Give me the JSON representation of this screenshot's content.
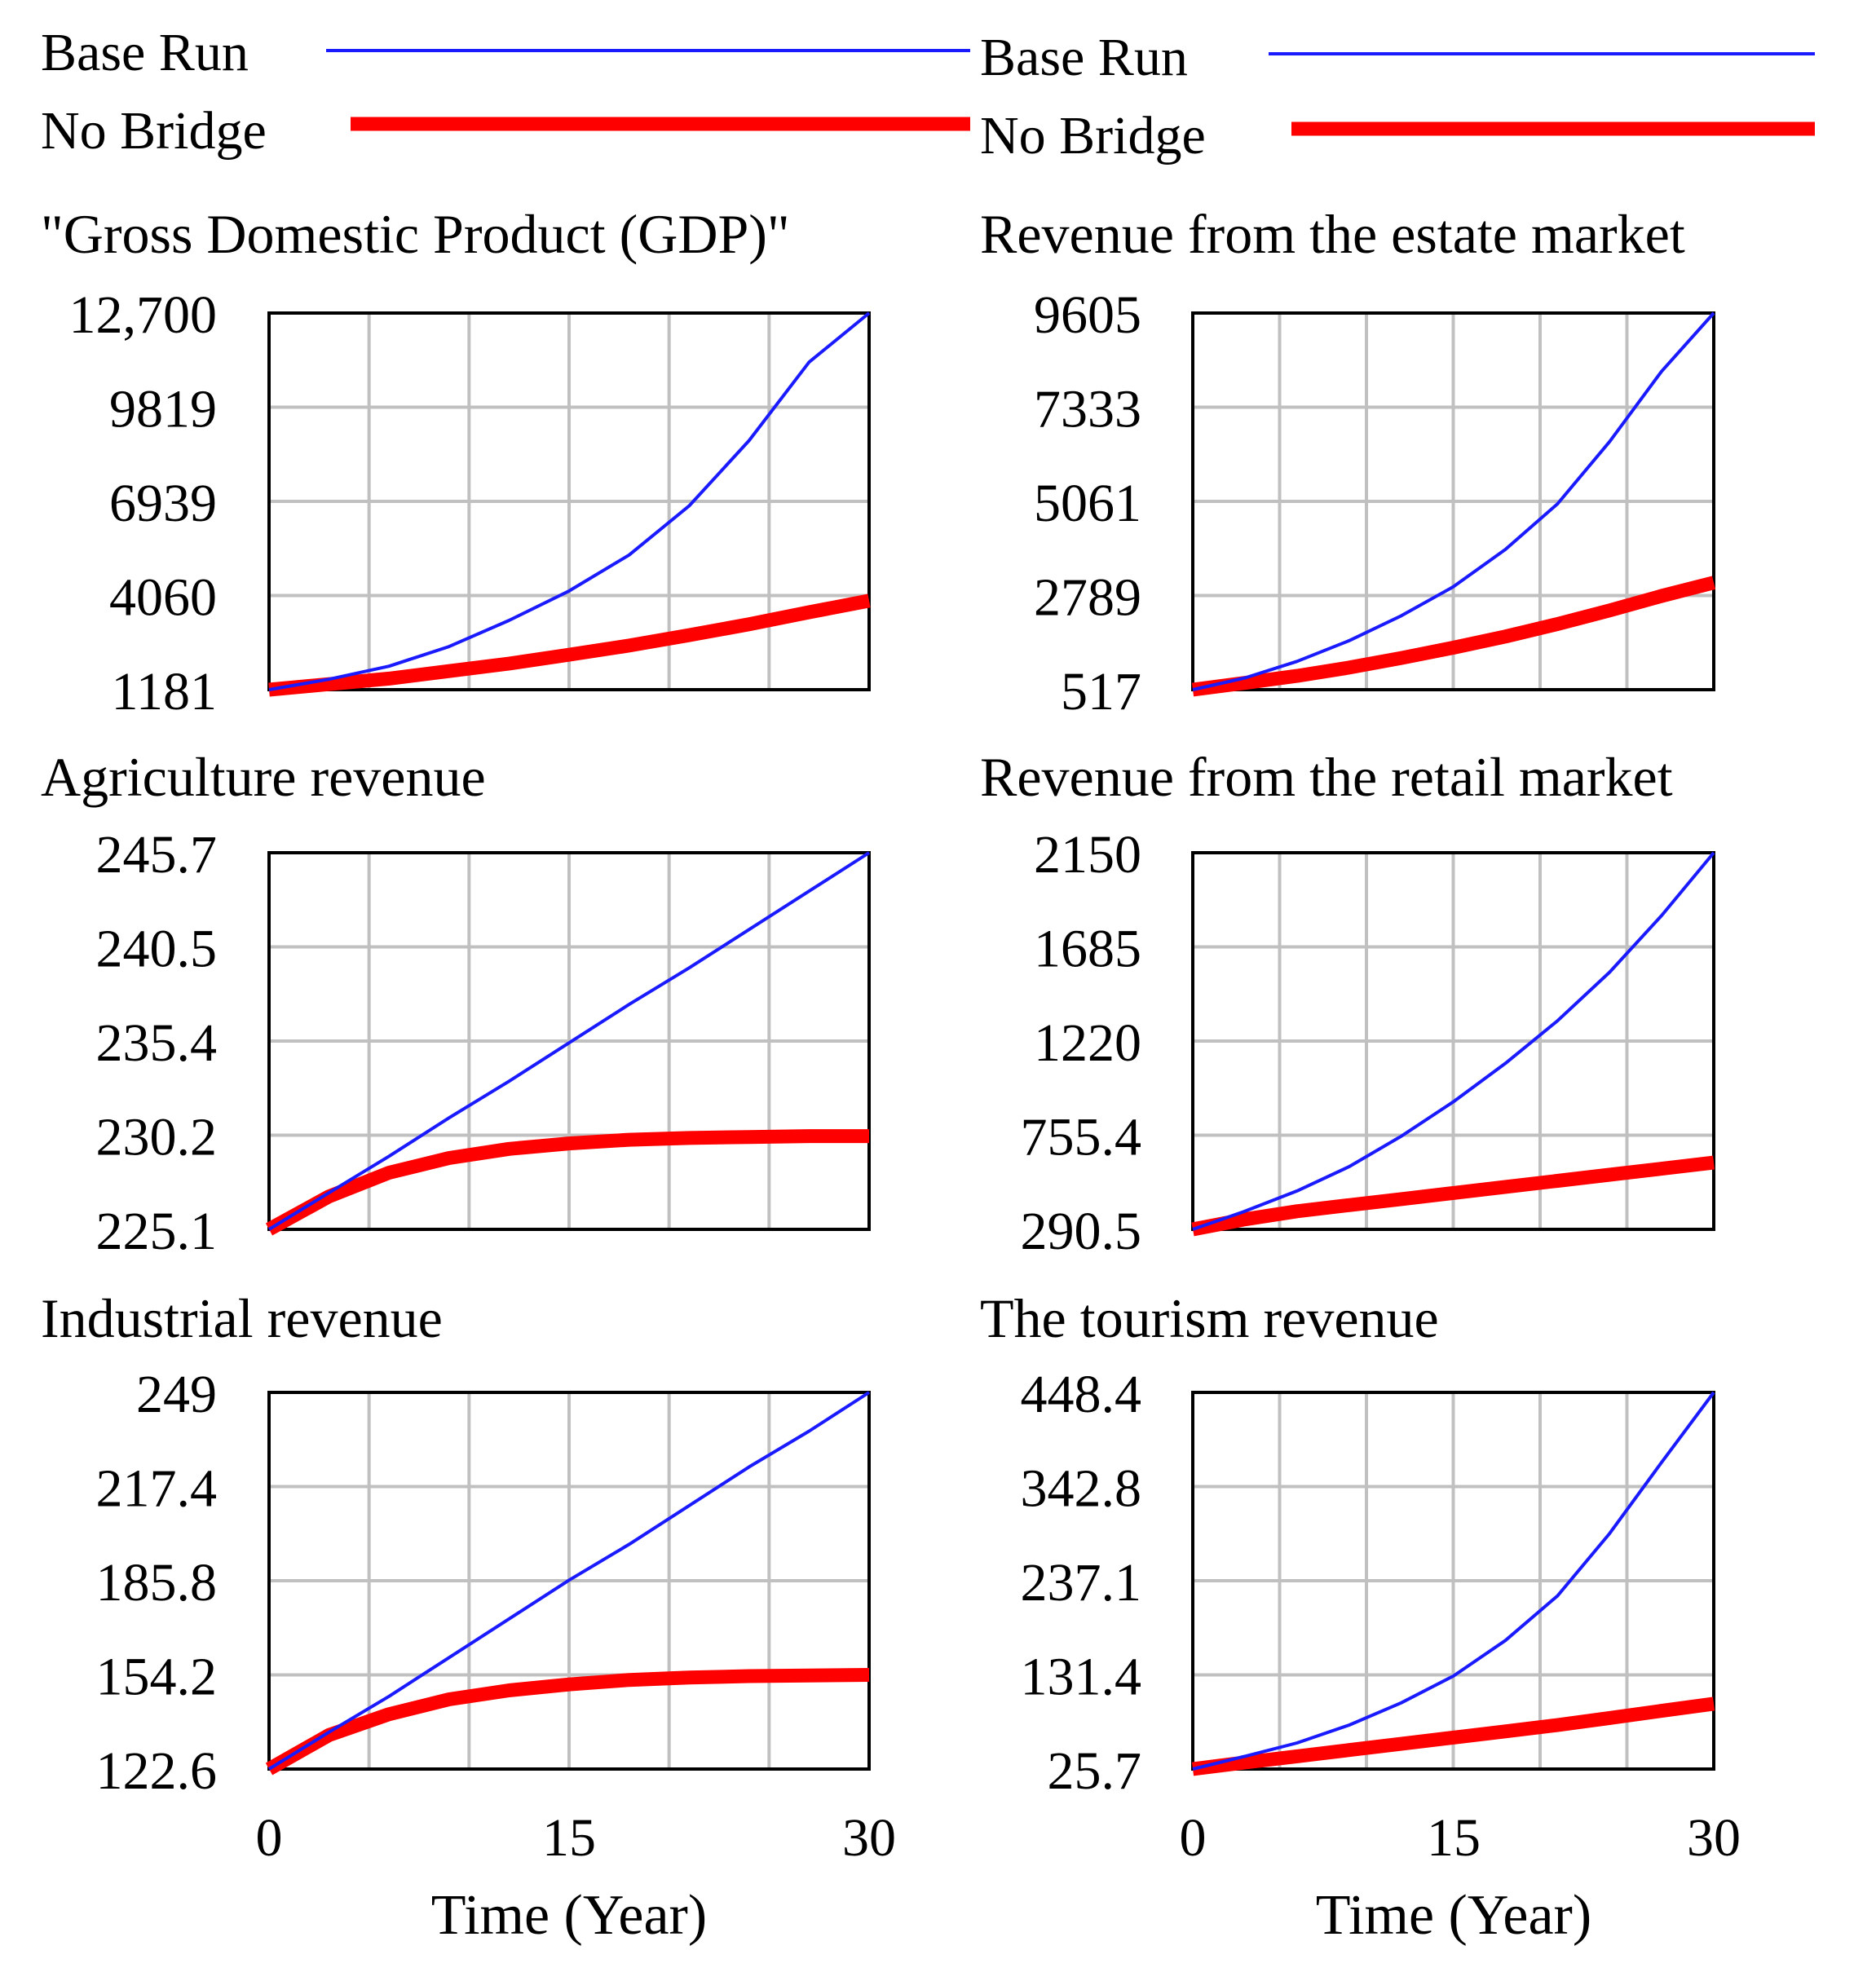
{
  "legend": {
    "left": [
      {
        "label": "Base Run",
        "color": "#1a1aff",
        "width": "thin"
      },
      {
        "label": "No Bridge",
        "color": "#ff0000",
        "width": "thick"
      }
    ],
    "right": [
      {
        "label": "Base Run",
        "color": "#1a1aff",
        "width": "thin"
      },
      {
        "label": "No Bridge",
        "color": "#ff0000",
        "width": "thick"
      }
    ]
  },
  "x_axis": {
    "label": "Time (Year)",
    "ticks": [
      "0",
      "15",
      "30"
    ],
    "range": [
      0,
      30
    ]
  },
  "chart_data": [
    {
      "type": "line",
      "title": "\"Gross Domestic Product (GDP)\"",
      "ytick_labels": [
        "12,700",
        "9819",
        "6939",
        "4060",
        "1181"
      ],
      "ylim": [
        1181,
        12700
      ],
      "x": [
        0,
        3,
        6,
        9,
        12,
        15,
        18,
        21,
        24,
        27,
        30
      ],
      "series": [
        {
          "name": "Base Run",
          "values": [
            1181,
            1500,
            1900,
            2500,
            3300,
            4200,
            5300,
            6800,
            8800,
            11200,
            12700
          ]
        },
        {
          "name": "No Bridge",
          "values": [
            1181,
            1350,
            1520,
            1750,
            1980,
            2250,
            2530,
            2850,
            3180,
            3550,
            3900
          ]
        }
      ]
    },
    {
      "type": "line",
      "title": "Revenue from the estate market",
      "ytick_labels": [
        "9605",
        "7333",
        "5061",
        "2789",
        "517"
      ],
      "ylim": [
        517,
        9605
      ],
      "x": [
        0,
        3,
        6,
        9,
        12,
        15,
        18,
        21,
        24,
        27,
        30
      ],
      "series": [
        {
          "name": "Base Run",
          "values": [
            517,
            800,
            1200,
            1700,
            2300,
            3000,
            3900,
            5000,
            6500,
            8200,
            9605
          ]
        },
        {
          "name": "No Bridge",
          "values": [
            517,
            680,
            850,
            1050,
            1280,
            1530,
            1800,
            2100,
            2430,
            2780,
            3100
          ]
        }
      ]
    },
    {
      "type": "line",
      "title": "Agriculture revenue",
      "ytick_labels": [
        "245.7",
        "240.5",
        "235.4",
        "230.2",
        "225.1"
      ],
      "ylim": [
        225.1,
        245.7
      ],
      "x": [
        0,
        3,
        6,
        9,
        12,
        15,
        18,
        21,
        24,
        27,
        30
      ],
      "series": [
        {
          "name": "Base Run",
          "values": [
            225.1,
            227.1,
            229.1,
            231.2,
            233.2,
            235.3,
            237.4,
            239.4,
            241.5,
            243.6,
            245.7
          ]
        },
        {
          "name": "No Bridge",
          "values": [
            225.1,
            226.9,
            228.2,
            229.0,
            229.5,
            229.8,
            230.0,
            230.1,
            230.15,
            230.2,
            230.2
          ]
        }
      ]
    },
    {
      "type": "line",
      "title": "Revenue from the retail market",
      "ytick_labels": [
        "2150",
        "1685",
        "1220",
        "755.4",
        "290.5"
      ],
      "ylim": [
        290.5,
        2150
      ],
      "x": [
        0,
        3,
        6,
        9,
        12,
        15,
        18,
        21,
        24,
        27,
        30
      ],
      "series": [
        {
          "name": "Base Run",
          "values": [
            290.5,
            380,
            480,
            600,
            750,
            920,
            1110,
            1320,
            1560,
            1840,
            2150
          ]
        },
        {
          "name": "No Bridge",
          "values": [
            290.5,
            340,
            380,
            410,
            440,
            470,
            500,
            530,
            560,
            590,
            620
          ]
        }
      ]
    },
    {
      "type": "line",
      "title": "Industrial revenue",
      "ytick_labels": [
        "249",
        "217.4",
        "185.8",
        "154.2",
        "122.6"
      ],
      "ylim": [
        122.6,
        249
      ],
      "x": [
        0,
        3,
        6,
        9,
        12,
        15,
        18,
        21,
        24,
        27,
        30
      ],
      "series": [
        {
          "name": "Base Run",
          "values": [
            122.6,
            135,
            147,
            160,
            173,
            186,
            198,
            211,
            224,
            236,
            249
          ]
        },
        {
          "name": "No Bridge",
          "values": [
            122.6,
            134,
            141,
            146,
            149,
            151,
            152.5,
            153.3,
            153.8,
            154.0,
            154.2
          ]
        }
      ]
    },
    {
      "type": "line",
      "title": "The tourism revenue",
      "ytick_labels": [
        "448.4",
        "342.8",
        "237.1",
        "131.4",
        "25.7"
      ],
      "ylim": [
        25.7,
        448.4
      ],
      "x": [
        0,
        3,
        6,
        9,
        12,
        15,
        18,
        21,
        24,
        27,
        30
      ],
      "series": [
        {
          "name": "Base Run",
          "values": [
            25.7,
            40,
            55,
            75,
            100,
            130,
            170,
            220,
            290,
            370,
            448.4
          ]
        },
        {
          "name": "No Bridge",
          "values": [
            25.7,
            33,
            40,
            47,
            54,
            61,
            68,
            75,
            83,
            91,
            99
          ]
        }
      ]
    }
  ]
}
